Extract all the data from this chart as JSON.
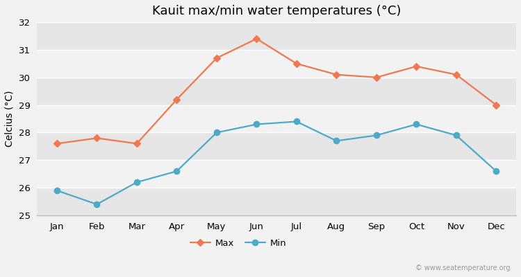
{
  "months": [
    "Jan",
    "Feb",
    "Mar",
    "Apr",
    "May",
    "Jun",
    "Jul",
    "Aug",
    "Sep",
    "Oct",
    "Nov",
    "Dec"
  ],
  "max_temps": [
    27.6,
    27.8,
    27.6,
    29.2,
    30.7,
    31.4,
    30.5,
    30.1,
    30.0,
    30.4,
    30.1,
    29.0
  ],
  "min_temps": [
    25.9,
    25.4,
    26.2,
    26.6,
    28.0,
    28.3,
    28.4,
    27.7,
    27.9,
    28.3,
    27.9,
    26.6
  ],
  "title": "Kauit max/min water temperatures (°C)",
  "ylabel": "Celcius (°C)",
  "ylim": [
    25,
    32
  ],
  "yticks": [
    25,
    26,
    27,
    28,
    29,
    30,
    31,
    32
  ],
  "max_color": "#f07850",
  "min_color": "#4aaac8",
  "fig_bg_color": "#f2f2f2",
  "band_light": "#f2f2f2",
  "band_dark": "#e6e6e6",
  "grid_color": "#ffffff",
  "watermark": "© www.seatemperature.org",
  "legend_labels": [
    "Max",
    "Min"
  ],
  "title_fontsize": 13,
  "axis_fontsize": 10,
  "tick_fontsize": 9.5
}
